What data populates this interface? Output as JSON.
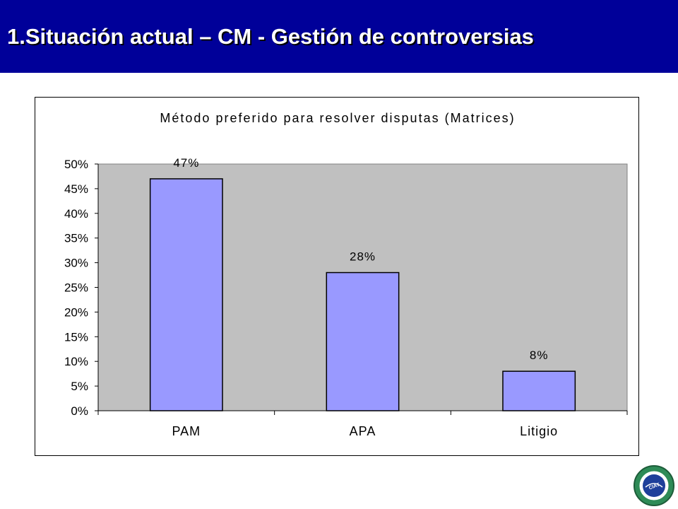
{
  "slide": {
    "title": "1.Situación actual – CM - Gestión de controversias",
    "header_color": "#000099"
  },
  "chart_data": {
    "type": "bar",
    "title": "Método preferido para resolver disputas (Matrices)",
    "categories": [
      "PAM",
      "APA",
      "Litigio"
    ],
    "values": [
      47,
      28,
      8
    ],
    "data_labels": [
      "47%",
      "28%",
      "8%"
    ],
    "y_tick_labels": [
      "0%",
      "5%",
      "10%",
      "15%",
      "20%",
      "25%",
      "30%",
      "35%",
      "40%",
      "45%",
      "50%"
    ],
    "ylim": [
      0,
      50
    ],
    "ystep": 5,
    "xlabel": "",
    "ylabel": "",
    "grid": false,
    "legend": "none",
    "bar_color": "#9999ff",
    "plot_background": "#c0c0c0"
  },
  "logo": {
    "icon": "circular-seal-logo-icon",
    "text": "CIAT"
  }
}
